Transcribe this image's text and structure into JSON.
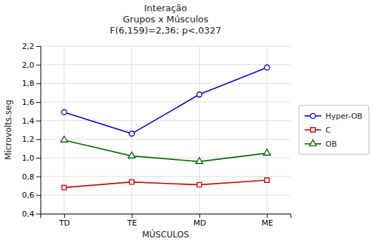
{
  "chart_data": {
    "type": "line",
    "title": [
      "Interação",
      "Grupos x Músculos",
      "F(6,159)=2,36; p<,0327"
    ],
    "xlabel": "MÚSCULOS",
    "ylabel": "Microvolts.seg",
    "categories": [
      "TD",
      "TE",
      "MD",
      "ME"
    ],
    "series": [
      {
        "name": "Hyper-OB",
        "color": "#0000cc",
        "marker": "circle",
        "values": [
          1.49,
          1.26,
          1.68,
          1.97
        ]
      },
      {
        "name": "C",
        "color": "#cc0000",
        "marker": "square",
        "values": [
          0.68,
          0.74,
          0.71,
          0.76
        ]
      },
      {
        "name": "OB",
        "color": "#006600",
        "marker": "triangle",
        "values": [
          1.19,
          1.02,
          0.96,
          1.05
        ]
      }
    ],
    "ylim": [
      0.4,
      2.2
    ],
    "yticks": [
      {
        "value": 0.4,
        "label": "0,4"
      },
      {
        "value": 0.6,
        "label": "0,6"
      },
      {
        "value": 0.8,
        "label": "0,8"
      },
      {
        "value": 1.0,
        "label": "1,0"
      },
      {
        "value": 1.2,
        "label": "1,2"
      },
      {
        "value": 1.4,
        "label": "1,4"
      },
      {
        "value": 1.6,
        "label": "1,6"
      },
      {
        "value": 1.8,
        "label": "1,8"
      },
      {
        "value": 2.0,
        "label": "2,0"
      },
      {
        "value": 2.2,
        "label": "2,2"
      }
    ],
    "grid": true,
    "legend": "right"
  }
}
